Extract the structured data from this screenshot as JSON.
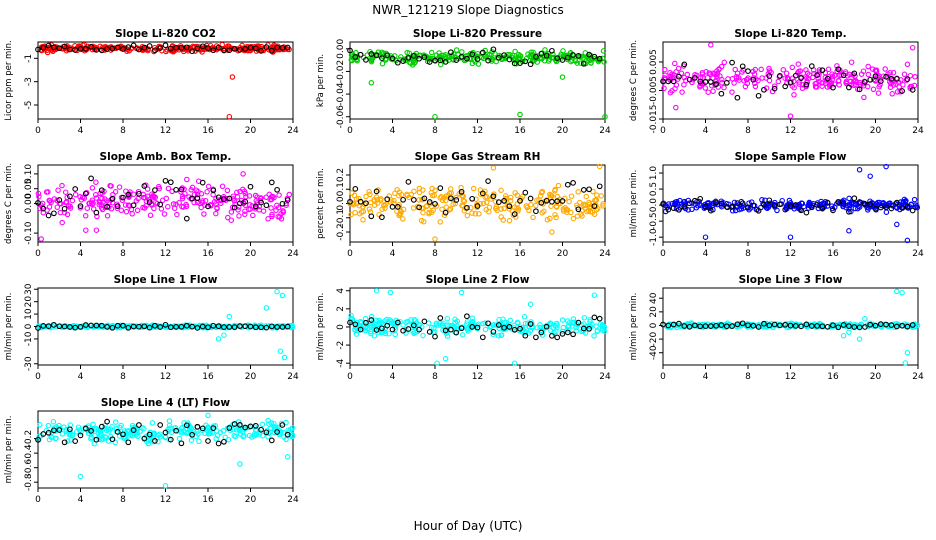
{
  "figure": {
    "title": "NWR_121219  Slope Diagnostics",
    "xlabel": "Hour of Day (UTC)"
  },
  "colors": {
    "overlay": "#000000",
    "co2": "#ff0000",
    "pressure": "#00cc00",
    "temp": "#ff00ff",
    "rh": "#ffaa00",
    "sample_flow": "#0000ff",
    "line_flow": "#00ffff"
  },
  "chart_data": [
    {
      "type": "scatter",
      "title": "Slope Li-820 CO2",
      "ylabel": "Licor ppm per min.",
      "color": "#ff0000",
      "xlim": [
        0,
        24
      ],
      "ylim": [
        -6.2,
        0.4
      ],
      "xticks": [
        "0",
        "4",
        "8",
        "12",
        "16",
        "20",
        "24"
      ],
      "yticks": [
        "-5",
        "-3",
        "-1"
      ],
      "band": [
        -0.5,
        0.2
      ],
      "outliers": [
        [
          0.9,
          -0.5
        ],
        [
          1.4,
          -0.4
        ],
        [
          18.3,
          -2.6
        ],
        [
          18.0,
          -6.0
        ]
      ]
    },
    {
      "type": "scatter",
      "title": "Slope Li-820 Pressure",
      "ylabel": "kPa per min.",
      "color": "#00cc00",
      "xlim": [
        0,
        24
      ],
      "ylim": [
        -0.062,
        0.006
      ],
      "xticks": [
        "0",
        "4",
        "8",
        "12",
        "16",
        "20",
        "24"
      ],
      "yticks": [
        "-0.06",
        "-0.04",
        "-0.02",
        "0.00"
      ],
      "band": [
        -0.015,
        0.0
      ],
      "outliers": [
        [
          8.0,
          -0.06
        ],
        [
          16.0,
          -0.058
        ],
        [
          24.0,
          -0.06
        ],
        [
          2.0,
          -0.03
        ],
        [
          20.0,
          -0.025
        ]
      ]
    },
    {
      "type": "scatter",
      "title": "Slope Li-820 Temp.",
      "ylabel": "degrees C per min.",
      "color": "#ff00ff",
      "xlim": [
        0,
        24
      ],
      "ylim": [
        -0.015,
        0.012
      ],
      "xticks": [
        "0",
        "4",
        "8",
        "12",
        "16",
        "20",
        "24"
      ],
      "yticks": [
        "-0.015",
        "-0.005",
        "0.005"
      ],
      "band": [
        -0.008,
        0.006
      ],
      "outliers": [
        [
          4.5,
          0.011
        ],
        [
          12.0,
          -0.014
        ],
        [
          1.2,
          -0.011
        ],
        [
          23.5,
          0.01
        ]
      ]
    },
    {
      "type": "scatter",
      "title": "Slope Amb. Box Temp.",
      "ylabel": "degrees C per min.",
      "color": "#ff00ff",
      "xlim": [
        0,
        24
      ],
      "ylim": [
        -0.13,
        0.13
      ],
      "xticks": [
        "0",
        "4",
        "8",
        "12",
        "16",
        "20",
        "24"
      ],
      "yticks": [
        "-0.10",
        "0.00",
        "0.05",
        "0.10"
      ],
      "band": [
        -0.08,
        0.09
      ],
      "outliers": [
        [
          0.3,
          -0.12
        ],
        [
          4.5,
          -0.09
        ],
        [
          5.5,
          -0.09
        ],
        [
          19.3,
          0.1
        ]
      ]
    },
    {
      "type": "scatter",
      "title": "Slope Gas Stream RH",
      "ylabel": "percent per min.",
      "color": "#ffaa00",
      "xlim": [
        0,
        24
      ],
      "ylim": [
        -0.27,
        0.27
      ],
      "xticks": [
        "0",
        "4",
        "8",
        "12",
        "16",
        "20",
        "24"
      ],
      "yticks": [
        "-0.2",
        "-0.1",
        "0.0",
        "0.1",
        "0.2"
      ],
      "band": [
        -0.16,
        0.17
      ],
      "outliers": [
        [
          8.0,
          -0.25
        ],
        [
          13.5,
          0.25
        ],
        [
          23.5,
          0.26
        ],
        [
          19.0,
          -0.2
        ]
      ]
    },
    {
      "type": "scatter",
      "title": "Slope Sample Flow",
      "ylabel": "ml/min per min.",
      "color": "#0000ff",
      "xlim": [
        0,
        24
      ],
      "ylim": [
        -1.15,
        1.25
      ],
      "xticks": [
        "0",
        "4",
        "8",
        "12",
        "16",
        "20",
        "24"
      ],
      "yticks": [
        "-1.0",
        "-0.5",
        "0.0",
        "0.5",
        "1.0"
      ],
      "band": [
        -0.25,
        0.25
      ],
      "outliers": [
        [
          4.0,
          -1.0
        ],
        [
          12.0,
          -1.0
        ],
        [
          17.5,
          -0.8
        ],
        [
          18.5,
          1.1
        ],
        [
          21.0,
          1.2
        ],
        [
          23.0,
          -1.1
        ],
        [
          22.0,
          -0.6
        ],
        [
          19.5,
          0.9
        ]
      ]
    },
    {
      "type": "scatter",
      "title": "Slope Line 1 Flow",
      "ylabel": "ml/min per min.",
      "color": "#00ffff",
      "xlim": [
        0,
        24
      ],
      "ylim": [
        -31,
        31
      ],
      "xticks": [
        "0",
        "4",
        "8",
        "12",
        "16",
        "20",
        "24"
      ],
      "yticks": [
        "-30",
        "-10",
        "0",
        "10",
        "20",
        "30"
      ],
      "band": [
        -1.5,
        1.5
      ],
      "outliers": [
        [
          17.0,
          -10
        ],
        [
          17.5,
          -7
        ],
        [
          22.5,
          28
        ],
        [
          23.0,
          25
        ],
        [
          22.8,
          -20
        ],
        [
          23.2,
          -25
        ],
        [
          21.5,
          15
        ],
        [
          18.0,
          8
        ]
      ]
    },
    {
      "type": "scatter",
      "title": "Slope Line 2 Flow",
      "ylabel": "ml/min per min.",
      "color": "#00ffff",
      "xlim": [
        0,
        24
      ],
      "ylim": [
        -4.2,
        4.3
      ],
      "xticks": [
        "0",
        "4",
        "8",
        "12",
        "16",
        "20",
        "24"
      ],
      "yticks": [
        "-4",
        "-2",
        "0",
        "2",
        "4"
      ],
      "band": [
        -1.5,
        1.6
      ],
      "outliers": [
        [
          2.5,
          4.0
        ],
        [
          3.8,
          3.8
        ],
        [
          8.2,
          -4.0
        ],
        [
          9.0,
          -3.5
        ],
        [
          10.5,
          3.8
        ],
        [
          15.5,
          -4.0
        ],
        [
          17.0,
          2.5
        ],
        [
          23.0,
          3.5
        ]
      ]
    },
    {
      "type": "scatter",
      "title": "Slope Line 3 Flow",
      "ylabel": "ml/min per min.",
      "color": "#00ffff",
      "xlim": [
        0,
        24
      ],
      "ylim": [
        -58,
        55
      ],
      "xticks": [
        "0",
        "4",
        "8",
        "12",
        "16",
        "20",
        "24"
      ],
      "yticks": [
        "-40",
        "-20",
        "0",
        "20",
        "40"
      ],
      "band": [
        -4,
        4
      ],
      "outliers": [
        [
          17.0,
          -15
        ],
        [
          17.5,
          -10
        ],
        [
          18.5,
          -20
        ],
        [
          22.0,
          50
        ],
        [
          22.5,
          48
        ],
        [
          23.0,
          -40
        ],
        [
          22.8,
          -55
        ],
        [
          19.0,
          10
        ]
      ]
    },
    {
      "type": "scatter",
      "title": "Slope Line 4 (LT) Flow",
      "ylabel": "ml/min per min.",
      "color": "#00ffff",
      "xlim": [
        0,
        24
      ],
      "ylim": [
        -0.88,
        0.18
      ],
      "xticks": [
        "0",
        "4",
        "8",
        "12",
        "16",
        "20",
        "24"
      ],
      "yticks": [
        "-0.8",
        "-0.6",
        "-0.4",
        "-0.2"
      ],
      "band": [
        -0.3,
        0.08
      ],
      "outliers": [
        [
          4.0,
          -0.72
        ],
        [
          12.0,
          -0.85
        ],
        [
          16.0,
          0.12
        ],
        [
          19.0,
          -0.55
        ],
        [
          23.5,
          -0.45
        ]
      ]
    }
  ]
}
